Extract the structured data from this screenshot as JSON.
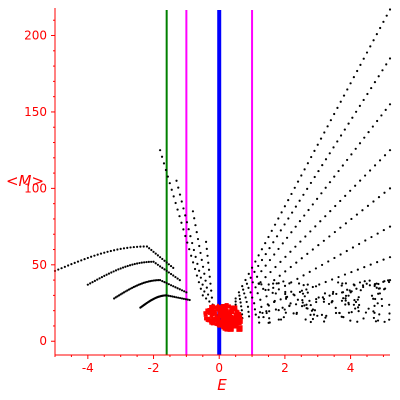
{
  "chart_data": {
    "type": "scatter",
    "title": "",
    "xlabel": "E",
    "ylabel": "<M>",
    "xlim": [
      -5,
      5.2
    ],
    "ylim": [
      -9,
      218
    ],
    "x_ticks": [
      -4,
      -2,
      0,
      2,
      4
    ],
    "x_tick_labels": [
      "-4",
      "-2",
      "0",
      "2",
      "4"
    ],
    "y_ticks": [
      0,
      50,
      100,
      150,
      200
    ],
    "y_tick_labels": [
      "0",
      "50",
      "100",
      "150",
      "200"
    ],
    "grid": false,
    "axis_color": "#ff0000",
    "vertical_lines": [
      {
        "x": -1.6,
        "color": "#008000",
        "style": "thin"
      },
      {
        "x": -1.0,
        "color": "#ff00ff",
        "style": "thin"
      },
      {
        "x": 0.0,
        "color": "#0000ff",
        "style": "thick"
      },
      {
        "x": 1.0,
        "color": "#ff00ff",
        "style": "thin"
      }
    ],
    "series": [
      {
        "color": "#000000",
        "description_free": true,
        "branches": [
          {
            "from": [
              0.5,
              28
            ],
            "to": [
              5.2,
              217
            ]
          },
          {
            "from": [
              0.5,
              26
            ],
            "to": [
              5.2,
              185
            ]
          },
          {
            "from": [
              0.5,
              24
            ],
            "to": [
              5.2,
              155
            ]
          },
          {
            "from": [
              0.5,
              22
            ],
            "to": [
              5.2,
              125
            ]
          },
          {
            "from": [
              0.5,
              20
            ],
            "to": [
              5.2,
              100
            ]
          },
          {
            "from": [
              0.5,
              18
            ],
            "to": [
              5.2,
              75
            ]
          },
          {
            "from": [
              0.5,
              16
            ],
            "to": [
              5.2,
              55
            ]
          },
          {
            "from": [
              0.5,
              14
            ],
            "to": [
              5.2,
              40
            ]
          },
          {
            "from": [
              -0.5,
              30
            ],
            "to": [
              -1.8,
              125
            ]
          },
          {
            "from": [
              -0.4,
              28
            ],
            "to": [
              -1.3,
              105
            ]
          },
          {
            "from": [
              -0.3,
              26
            ],
            "to": [
              -0.8,
              85
            ]
          },
          {
            "from": [
              -0.2,
              24
            ],
            "to": [
              -0.4,
              65
            ]
          },
          {
            "from": [
              -5.0,
              46
            ],
            "to": [
              -2.2,
              62
            ],
            "curve_to": [
              -1.4,
              48
            ]
          },
          {
            "from": [
              -4.0,
              37
            ],
            "to": [
              -2.0,
              52
            ],
            "curve_to": [
              -1.2,
              40
            ]
          },
          {
            "from": [
              -3.2,
              28
            ],
            "to": [
              -1.8,
              40
            ],
            "curve_to": [
              -1.0,
              32
            ]
          },
          {
            "from": [
              -2.4,
              22
            ],
            "to": [
              -1.6,
              30
            ],
            "curve_to": [
              -0.9,
              27
            ]
          }
        ]
      },
      {
        "color": "#ff0000",
        "cluster": {
          "center": [
            0.1,
            17
          ],
          "spread_x": 0.55,
          "spread_y": 7,
          "count": 140
        }
      }
    ]
  }
}
